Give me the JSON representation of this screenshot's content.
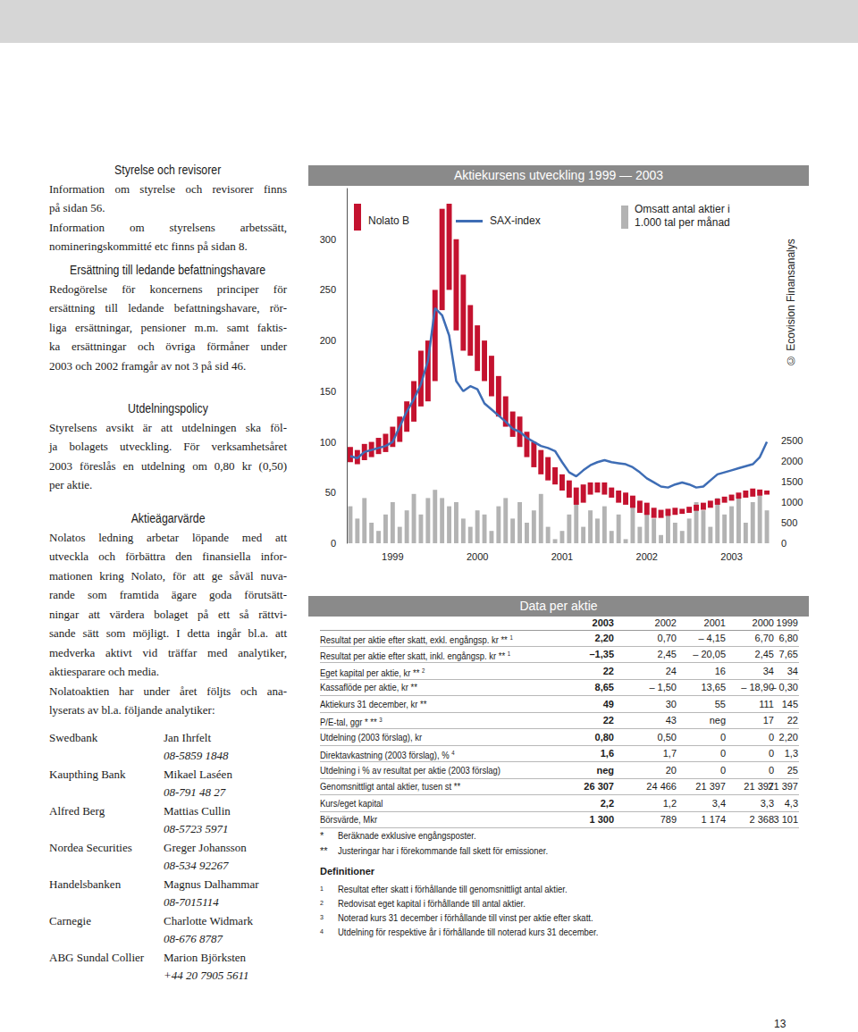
{
  "left_column": {
    "sections": [
      {
        "heading": "Styrelse och revisorer",
        "paragraphs": [
          [
            "Information om styrelse och revisorer finns",
            "på sidan 56."
          ],
          [
            "Information om styrelsens arbetssätt,",
            "nomineringskommitté etc finns på sidan 8."
          ]
        ]
      },
      {
        "heading": "Ersättning till ledande befattningshavare",
        "paragraphs": [
          [
            "Redogörelse för koncernens principer för",
            "ersättning till ledande befattningshavare, rör-",
            "liga ersättningar, pensioner m.m. samt faktis-",
            "ka ersättningar och övriga förmåner under",
            "2003 och 2002 framgår av not 3 på sid 46."
          ]
        ]
      },
      {
        "heading": "Utdelningspolicy",
        "paragraphs": [
          [
            "Styrelsens avsikt är att utdelningen ska föl-",
            "ja bolagets utveckling. För verksamhetsåret",
            "2003 föreslås en utdelning om 0,80 kr (0,50)",
            "per aktie."
          ]
        ]
      },
      {
        "heading": "Aktieägarvärde",
        "paragraphs": [
          [
            "Nolatos ledning arbetar löpande med att",
            "utveckla och förbättra den finansiella infor-",
            "mationen kring Nolato, för att ge såväl nuva-",
            "rande som framtida ägare goda förutsätt-",
            "ningar att värdera bolaget på ett så rättvi-",
            "sande sätt som möjligt. I detta ingår bl.a. att",
            "medverka aktivt vid träffar med analytiker,",
            "aktiesparare och media."
          ],
          [
            "Nolatoaktien har under året följts och ana-",
            "lyserats av bl.a. följande analytiker:"
          ]
        ]
      }
    ],
    "analysts": [
      {
        "bank": "Swedbank",
        "name": "Jan Ihrfelt",
        "phone": "08-5859 1848"
      },
      {
        "bank": "Kaupthing Bank",
        "name": "Mikael Laséen",
        "phone": "08-791 48 27"
      },
      {
        "bank": "Alfred Berg",
        "name": "Mattias Cullin",
        "phone": "08-5723 5971"
      },
      {
        "bank": "Nordea Securities",
        "name": "Greger Johansson",
        "phone": "08-534 92267"
      },
      {
        "bank": "Handelsbanken",
        "name": "Magnus Dalhammar",
        "phone": "08-7015114"
      },
      {
        "bank": "Carnegie",
        "name": "Charlotte Widmark",
        "phone": "08-676 8787"
      },
      {
        "bank": "ABG Sundal Collier",
        "name": "Marion Björksten",
        "phone": "+44 20 7905 5611"
      }
    ]
  },
  "chart_data": {
    "type": "combo",
    "title": "Aktiekursens utveckling 1999 — 2003",
    "credit": "© Ecovision Finansanalys",
    "categories": [
      null,
      null,
      null,
      null,
      null,
      null,
      "1999",
      null,
      null,
      null,
      null,
      null,
      null,
      null,
      null,
      null,
      null,
      null,
      "2000",
      null,
      null,
      null,
      null,
      null,
      null,
      null,
      null,
      null,
      null,
      null,
      "2001",
      null,
      null,
      null,
      null,
      null,
      null,
      null,
      null,
      null,
      null,
      null,
      "2002",
      null,
      null,
      null,
      null,
      null,
      null,
      null,
      null,
      null,
      null,
      null,
      "2003",
      null,
      null,
      null,
      null,
      null
    ],
    "series": [
      {
        "name": "Omsatt antal aktier i 1.000 tal per månad",
        "type": "bar",
        "color": "#b3b3b3",
        "axis": "y2",
        "values": [
          900,
          600,
          1100,
          500,
          300,
          700,
          1000,
          400,
          800,
          1200,
          700,
          1100,
          1300,
          1100,
          900,
          1000,
          600,
          400,
          800,
          700,
          300,
          900,
          1100,
          600,
          1000,
          500,
          800,
          1200,
          400,
          100,
          300,
          700,
          1000,
          400,
          800,
          600,
          900,
          300,
          700,
          100,
          1000,
          400,
          800,
          600,
          200,
          700,
          500,
          300,
          600,
          1000,
          800,
          400,
          1100,
          700,
          900,
          1200,
          500,
          1000,
          1300,
          800
        ]
      },
      {
        "name": "Nolato B",
        "type": "range",
        "color": "#c4122f",
        "low": [
          80,
          78,
          82,
          85,
          88,
          90,
          95,
          100,
          110,
          120,
          135,
          140,
          160,
          230,
          250,
          210,
          190,
          185,
          170,
          160,
          145,
          125,
          115,
          105,
          95,
          85,
          75,
          68,
          62,
          58,
          52,
          45,
          38,
          40,
          48,
          50,
          48,
          45,
          40,
          38,
          35,
          30,
          28,
          25,
          25,
          27,
          28,
          29,
          30,
          32,
          33,
          35,
          38,
          40,
          42,
          44,
          45,
          46,
          47,
          48
        ],
        "high": [
          95,
          92,
          98,
          100,
          104,
          108,
          115,
          125,
          140,
          160,
          190,
          200,
          250,
          330,
          335,
          300,
          265,
          235,
          215,
          200,
          185,
          165,
          145,
          130,
          125,
          110,
          100,
          92,
          85,
          75,
          68,
          62,
          55,
          58,
          60,
          60,
          60,
          55,
          52,
          50,
          47,
          42,
          40,
          35,
          33,
          34,
          35,
          34,
          36,
          38,
          40,
          42,
          44,
          46,
          48,
          50,
          52,
          54,
          53,
          52
        ]
      },
      {
        "name": "SAX-index",
        "type": "line",
        "color": "#3e6db5",
        "values": [
          86,
          84,
          90,
          92,
          94,
          96,
          100,
          115,
          130,
          142,
          157,
          180,
          232,
          225,
          205,
          160,
          150,
          155,
          152,
          138,
          132,
          126,
          120,
          113,
          110,
          104,
          100,
          96,
          94,
          91,
          80,
          70,
          66,
          72,
          77,
          80,
          82,
          80,
          79,
          78,
          75,
          70,
          64,
          60,
          56,
          55,
          58,
          60,
          58,
          55,
          56,
          62,
          68,
          70,
          72,
          74,
          76,
          78,
          85,
          100
        ]
      }
    ],
    "ylim": [
      0,
      350
    ],
    "yticks": [
      0,
      50,
      100,
      150,
      200,
      250,
      300
    ],
    "y2lim": [
      0,
      2500
    ],
    "y2ticks": [
      0,
      500,
      1000,
      1500,
      2000,
      2500
    ],
    "grid": false,
    "legend": "top"
  },
  "table": {
    "title": "Data per aktie",
    "columns": [
      "2003",
      "2002",
      "2001",
      "2000",
      "1999"
    ],
    "rows": [
      {
        "label": "Resultat per aktie efter skatt, exkl. engångsp. kr **",
        "note": "1",
        "values": [
          "2,20",
          "0,70",
          "– 4,15",
          "6,70",
          "6,80"
        ]
      },
      {
        "label": "Resultat per aktie efter skatt, inkl. engångsp. kr **",
        "note": "1",
        "values": [
          "–1,35",
          "2,45",
          "– 20,05",
          "2,45",
          "7,65"
        ]
      },
      {
        "label": "Eget kapital per aktie, kr **",
        "note": "2",
        "values": [
          "22",
          "24",
          "16",
          "34",
          "34"
        ]
      },
      {
        "label": "Kassaflöde per aktie, kr **",
        "values": [
          "8,65",
          "– 1,50",
          "13,65",
          "– 18,90",
          "– 0,30"
        ]
      },
      {
        "label": "Aktiekurs 31 december, kr **",
        "values": [
          "49",
          "30",
          "55",
          "111",
          "145"
        ]
      },
      {
        "label": "P/E-tal, ggr * **",
        "note": "3",
        "values": [
          "22",
          "43",
          "neg",
          "17",
          "22"
        ]
      },
      {
        "label": "Utdelning (2003 förslag), kr",
        "values": [
          "0,80",
          "0,50",
          "0",
          "0",
          "2,20"
        ]
      },
      {
        "label": "Direktavkastning (2003 förslag), %",
        "note": "4",
        "values": [
          "1,6",
          "1,7",
          "0",
          "0",
          "1,3"
        ]
      },
      {
        "label": "Utdelning i % av resultat per aktie (2003 förslag)",
        "values": [
          "neg",
          "20",
          "0",
          "0",
          "25"
        ]
      },
      {
        "label": "Genomsnittligt antal aktier, tusen st **",
        "values": [
          "26 307",
          "24 466",
          "21 397",
          "21 397",
          "21 397"
        ]
      },
      {
        "label": "Kurs/eget kapital",
        "values": [
          "2,2",
          "1,2",
          "3,4",
          "3,3",
          "4,3"
        ]
      },
      {
        "label": "Börsvärde, Mkr",
        "values": [
          "1 300",
          "789",
          "1 174",
          "2 368",
          "3 101"
        ]
      }
    ]
  },
  "footnotes": [
    {
      "mark": "*",
      "text": "Beräknade exklusive engångsposter."
    },
    {
      "mark": "**",
      "text": "Justeringar har i förekommande fall skett för emissioner."
    }
  ],
  "definitions": {
    "title": "Definitioner",
    "items": [
      {
        "mark": "1",
        "text": "Resultat efter skatt i förhållande till genomsnittligt antal aktier."
      },
      {
        "mark": "2",
        "text": "Redovisat eget kapital i förhållande till antal aktier."
      },
      {
        "mark": "3",
        "text": "Noterad kurs 31 december i förhållande till vinst per aktie efter skatt."
      },
      {
        "mark": "4",
        "text": "Utdelning för respektive år i förhållande till noterad kurs 31 december."
      }
    ]
  },
  "page_number": "13"
}
